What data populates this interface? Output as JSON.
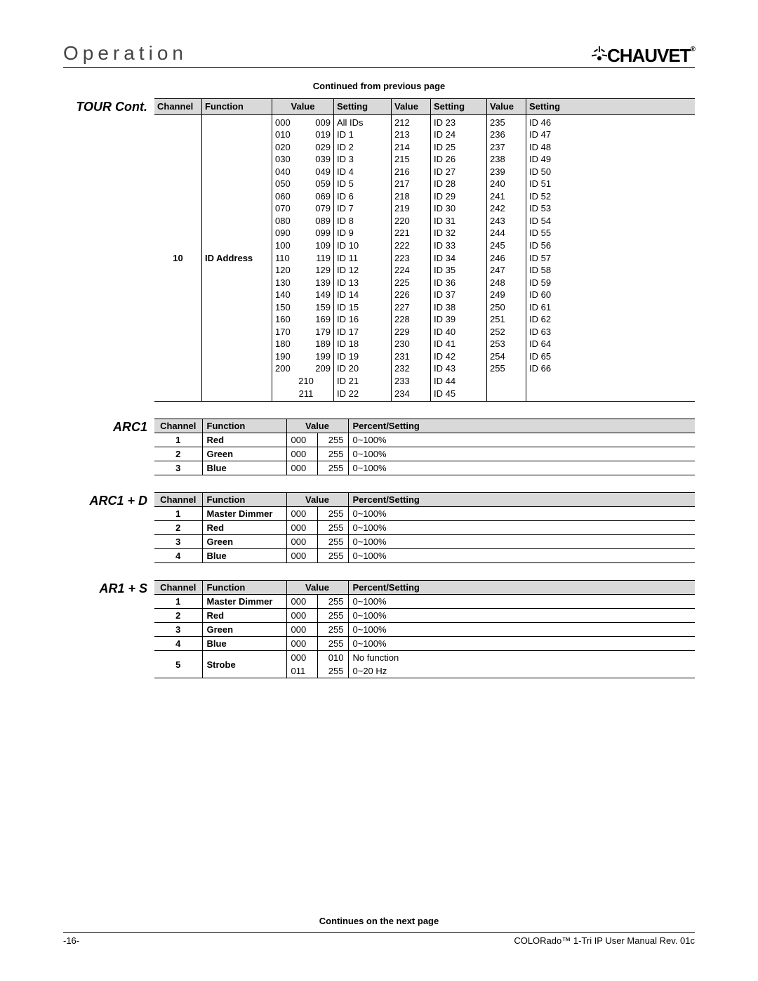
{
  "header": {
    "title": "Operation",
    "logo_text": "CHAUVET",
    "logo_reg": "®"
  },
  "continued_top": "Continued from previous page",
  "continued_bottom": "Continues on the next page",
  "footer": {
    "page": "-16-",
    "doc": "COLORado™ 1-Tri IP User Manual Rev. 01c"
  },
  "tour": {
    "title": "TOUR Cont.",
    "head": [
      "Channel",
      "Function",
      "Value",
      "",
      "Setting",
      "Value",
      "Setting",
      "Value",
      "Setting"
    ],
    "channel": "10",
    "function": "ID Address",
    "col1": [
      {
        "a": "000",
        "b": "009",
        "s": "All IDs"
      },
      {
        "a": "010",
        "b": "019",
        "s": "ID 1"
      },
      {
        "a": "020",
        "b": "029",
        "s": "ID 2"
      },
      {
        "a": "030",
        "b": "039",
        "s": "ID 3"
      },
      {
        "a": "040",
        "b": "049",
        "s": "ID 4"
      },
      {
        "a": "050",
        "b": "059",
        "s": "ID 5"
      },
      {
        "a": "060",
        "b": "069",
        "s": "ID 6"
      },
      {
        "a": "070",
        "b": "079",
        "s": "ID 7"
      },
      {
        "a": "080",
        "b": "089",
        "s": "ID 8"
      },
      {
        "a": "090",
        "b": "099",
        "s": "ID 9"
      },
      {
        "a": "100",
        "b": "109",
        "s": "ID 10"
      },
      {
        "a": "110",
        "b": "119",
        "s": "ID 11"
      },
      {
        "a": "120",
        "b": "129",
        "s": "ID 12"
      },
      {
        "a": "130",
        "b": "139",
        "s": "ID 13"
      },
      {
        "a": "140",
        "b": "149",
        "s": "ID 14"
      },
      {
        "a": "150",
        "b": "159",
        "s": "ID 15"
      },
      {
        "a": "160",
        "b": "169",
        "s": "ID 16"
      },
      {
        "a": "170",
        "b": "179",
        "s": "ID 17"
      },
      {
        "a": "180",
        "b": "189",
        "s": "ID 18"
      },
      {
        "a": "190",
        "b": "199",
        "s": "ID 19"
      },
      {
        "a": "200",
        "b": "209",
        "s": "ID 20"
      },
      {
        "a": "",
        "b": "210",
        "s": "ID 21",
        "center": true
      },
      {
        "a": "",
        "b": "211",
        "s": "ID 22",
        "center": true
      }
    ],
    "col2": [
      {
        "v": "212",
        "s": "ID 23"
      },
      {
        "v": "213",
        "s": "ID 24"
      },
      {
        "v": "214",
        "s": "ID 25"
      },
      {
        "v": "215",
        "s": "ID 26"
      },
      {
        "v": "216",
        "s": "ID 27"
      },
      {
        "v": "217",
        "s": "ID 28"
      },
      {
        "v": "218",
        "s": "ID 29"
      },
      {
        "v": "219",
        "s": "ID 30"
      },
      {
        "v": "220",
        "s": "ID 31"
      },
      {
        "v": "221",
        "s": "ID 32"
      },
      {
        "v": "222",
        "s": "ID 33"
      },
      {
        "v": "223",
        "s": "ID 34"
      },
      {
        "v": "224",
        "s": "ID 35"
      },
      {
        "v": "225",
        "s": "ID 36"
      },
      {
        "v": "226",
        "s": "ID 37"
      },
      {
        "v": "227",
        "s": "ID 38"
      },
      {
        "v": "228",
        "s": "ID 39"
      },
      {
        "v": "229",
        "s": "ID 40"
      },
      {
        "v": "230",
        "s": "ID 41"
      },
      {
        "v": "231",
        "s": "ID 42"
      },
      {
        "v": "232",
        "s": "ID 43"
      },
      {
        "v": "233",
        "s": "ID 44"
      },
      {
        "v": "234",
        "s": "ID 45"
      }
    ],
    "col3": [
      {
        "v": "235",
        "s": "ID 46"
      },
      {
        "v": "236",
        "s": "ID 47"
      },
      {
        "v": "237",
        "s": "ID 48"
      },
      {
        "v": "238",
        "s": "ID 49"
      },
      {
        "v": "239",
        "s": "ID 50"
      },
      {
        "v": "240",
        "s": "ID 51"
      },
      {
        "v": "241",
        "s": "ID 52"
      },
      {
        "v": "242",
        "s": "ID 53"
      },
      {
        "v": "243",
        "s": "ID 54"
      },
      {
        "v": "244",
        "s": "ID 55"
      },
      {
        "v": "245",
        "s": "ID 56"
      },
      {
        "v": "246",
        "s": "ID 57"
      },
      {
        "v": "247",
        "s": "ID 58"
      },
      {
        "v": "248",
        "s": "ID 59"
      },
      {
        "v": "249",
        "s": "ID 60"
      },
      {
        "v": "250",
        "s": "ID 61"
      },
      {
        "v": "251",
        "s": "ID 62"
      },
      {
        "v": "252",
        "s": "ID 63"
      },
      {
        "v": "253",
        "s": "ID 64"
      },
      {
        "v": "254",
        "s": "ID 65"
      },
      {
        "v": "255",
        "s": "ID 66"
      }
    ]
  },
  "tables": {
    "head": [
      "Channel",
      "Function",
      "Value",
      "",
      "Percent/Setting"
    ],
    "arc1": {
      "title": "ARC1",
      "rows": [
        {
          "ch": "1",
          "fn": "Red",
          "a": "000",
          "b": "255",
          "ps": "0~100%"
        },
        {
          "ch": "2",
          "fn": "Green",
          "a": "000",
          "b": "255",
          "ps": "0~100%"
        },
        {
          "ch": "3",
          "fn": "Blue",
          "a": "000",
          "b": "255",
          "ps": "0~100%"
        }
      ]
    },
    "arc1d": {
      "title": "ARC1 + D",
      "rows": [
        {
          "ch": "1",
          "fn": "Master Dimmer",
          "a": "000",
          "b": "255",
          "ps": "0~100%"
        },
        {
          "ch": "2",
          "fn": "Red",
          "a": "000",
          "b": "255",
          "ps": "0~100%"
        },
        {
          "ch": "3",
          "fn": "Green",
          "a": "000",
          "b": "255",
          "ps": "0~100%"
        },
        {
          "ch": "4",
          "fn": "Blue",
          "a": "000",
          "b": "255",
          "ps": "0~100%"
        }
      ]
    },
    "ar1s": {
      "title": "AR1 + S",
      "rows": [
        {
          "ch": "1",
          "fn": "Master Dimmer",
          "a": "000",
          "b": "255",
          "ps": "0~100%"
        },
        {
          "ch": "2",
          "fn": "Red",
          "a": "000",
          "b": "255",
          "ps": "0~100%"
        },
        {
          "ch": "3",
          "fn": "Green",
          "a": "000",
          "b": "255",
          "ps": "0~100%"
        },
        {
          "ch": "4",
          "fn": "Blue",
          "a": "000",
          "b": "255",
          "ps": "0~100%"
        },
        {
          "ch": "5",
          "fn": "Strobe",
          "a": "000",
          "b": "010",
          "ps": "No function",
          "span": true
        },
        {
          "ch": "",
          "fn": "",
          "a": "011",
          "b": "255",
          "ps": "0~20 Hz",
          "cont": true
        }
      ]
    }
  }
}
